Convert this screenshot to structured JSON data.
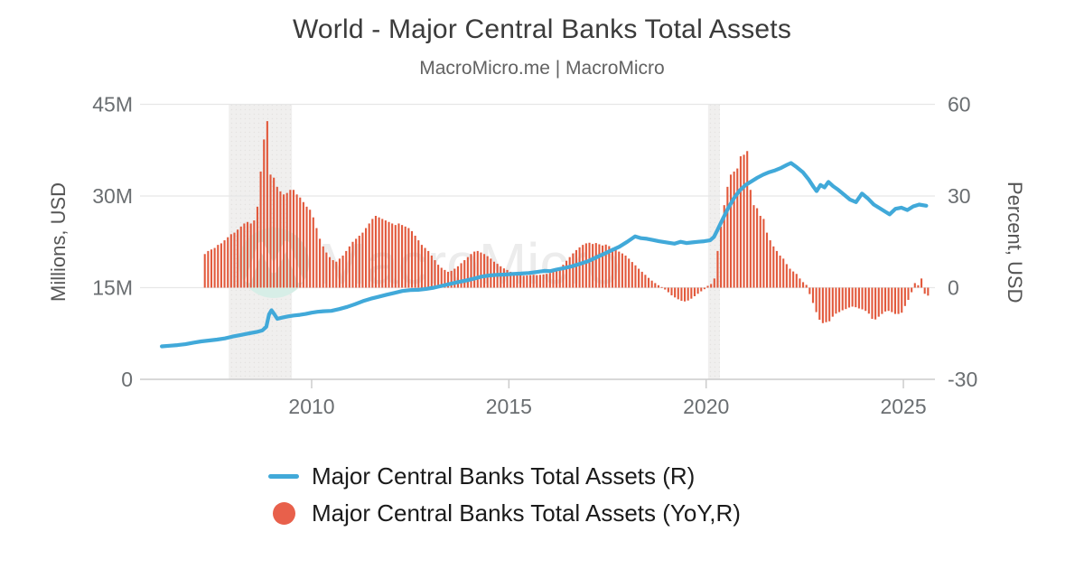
{
  "chart_data": {
    "type": "combo",
    "title": "World - Major Central Banks Total Assets",
    "subtitle": "MacroMicro.me | MacroMicro",
    "watermark": {
      "text": "MacroMicro"
    },
    "x_axis": {
      "ticks": [
        2010,
        2015,
        2020,
        2025
      ],
      "range_years": [
        2005.6,
        2025.85
      ],
      "grid": false
    },
    "left_axis": {
      "label": "Millions, USD",
      "tick_labels": [
        "45M",
        "30M",
        "15M",
        "0"
      ],
      "tick_values": [
        45,
        30,
        15,
        0
      ],
      "range": [
        0,
        45
      ]
    },
    "right_axis": {
      "label": "Percent, USD",
      "tick_labels": [
        "60",
        "30",
        "0",
        "-30"
      ],
      "tick_values": [
        60,
        30,
        0,
        -30
      ],
      "range": [
        -30,
        60
      ]
    },
    "recession_bands": [
      [
        2007.9,
        2009.5
      ],
      [
        2020.05,
        2020.35
      ]
    ],
    "legend_position": "bottom",
    "theme": {
      "grid": "#e7e7e7",
      "axis_line": "#cccccc",
      "tick_text": "#6a6e71",
      "band_fill": "#f0efee",
      "band_dot": "#e3e2e0",
      "watermark_text_color": "#ececec",
      "watermark_circle_color": "#d7eee7",
      "watermark_m_color": "#ffffff"
    },
    "series": [
      {
        "name": "Major Central Banks Total Assets (R)",
        "type": "line",
        "axis": "left",
        "unit": "M",
        "color": "#41a9d9",
        "points": [
          [
            2006.2,
            5.4
          ],
          [
            2006.4,
            5.5
          ],
          [
            2006.6,
            5.6
          ],
          [
            2006.8,
            5.75
          ],
          [
            2007.0,
            6.0
          ],
          [
            2007.2,
            6.2
          ],
          [
            2007.4,
            6.35
          ],
          [
            2007.6,
            6.5
          ],
          [
            2007.8,
            6.7
          ],
          [
            2008.0,
            7.0
          ],
          [
            2008.2,
            7.25
          ],
          [
            2008.4,
            7.5
          ],
          [
            2008.6,
            7.75
          ],
          [
            2008.75,
            8.0
          ],
          [
            2008.85,
            8.6
          ],
          [
            2008.92,
            10.6
          ],
          [
            2008.98,
            11.3
          ],
          [
            2009.05,
            10.7
          ],
          [
            2009.13,
            9.9
          ],
          [
            2009.25,
            10.1
          ],
          [
            2009.4,
            10.3
          ],
          [
            2009.55,
            10.45
          ],
          [
            2009.7,
            10.55
          ],
          [
            2009.85,
            10.7
          ],
          [
            2010.0,
            10.9
          ],
          [
            2010.15,
            11.05
          ],
          [
            2010.3,
            11.15
          ],
          [
            2010.5,
            11.2
          ],
          [
            2010.7,
            11.5
          ],
          [
            2010.9,
            11.85
          ],
          [
            2011.1,
            12.3
          ],
          [
            2011.3,
            12.8
          ],
          [
            2011.5,
            13.2
          ],
          [
            2011.7,
            13.5
          ],
          [
            2011.9,
            13.85
          ],
          [
            2012.1,
            14.15
          ],
          [
            2012.3,
            14.45
          ],
          [
            2012.5,
            14.6
          ],
          [
            2012.7,
            14.65
          ],
          [
            2012.9,
            14.8
          ],
          [
            2013.1,
            15.0
          ],
          [
            2013.3,
            15.3
          ],
          [
            2013.5,
            15.6
          ],
          [
            2013.7,
            15.9
          ],
          [
            2013.9,
            16.15
          ],
          [
            2014.1,
            16.45
          ],
          [
            2014.3,
            16.8
          ],
          [
            2014.5,
            17.0
          ],
          [
            2014.7,
            17.1
          ],
          [
            2014.9,
            17.15
          ],
          [
            2015.1,
            17.25
          ],
          [
            2015.3,
            17.3
          ],
          [
            2015.5,
            17.4
          ],
          [
            2015.7,
            17.55
          ],
          [
            2015.9,
            17.75
          ],
          [
            2016.05,
            17.7
          ],
          [
            2016.2,
            17.95
          ],
          [
            2016.4,
            18.2
          ],
          [
            2016.6,
            18.5
          ],
          [
            2016.8,
            18.9
          ],
          [
            2017.0,
            19.3
          ],
          [
            2017.2,
            19.9
          ],
          [
            2017.4,
            20.5
          ],
          [
            2017.6,
            21.1
          ],
          [
            2017.8,
            21.7
          ],
          [
            2018.0,
            22.5
          ],
          [
            2018.2,
            23.4
          ],
          [
            2018.35,
            23.1
          ],
          [
            2018.5,
            23.0
          ],
          [
            2018.65,
            22.8
          ],
          [
            2018.8,
            22.6
          ],
          [
            2019.0,
            22.4
          ],
          [
            2019.2,
            22.2
          ],
          [
            2019.35,
            22.5
          ],
          [
            2019.5,
            22.3
          ],
          [
            2019.65,
            22.4
          ],
          [
            2019.8,
            22.5
          ],
          [
            2019.95,
            22.6
          ],
          [
            2020.1,
            22.75
          ],
          [
            2020.2,
            23.3
          ],
          [
            2020.3,
            24.6
          ],
          [
            2020.42,
            26.2
          ],
          [
            2020.55,
            27.9
          ],
          [
            2020.7,
            29.6
          ],
          [
            2020.85,
            30.9
          ],
          [
            2021.0,
            31.8
          ],
          [
            2021.15,
            32.4
          ],
          [
            2021.3,
            33.0
          ],
          [
            2021.45,
            33.5
          ],
          [
            2021.6,
            33.9
          ],
          [
            2021.75,
            34.2
          ],
          [
            2021.9,
            34.6
          ],
          [
            2022.05,
            35.1
          ],
          [
            2022.15,
            35.4
          ],
          [
            2022.3,
            34.7
          ],
          [
            2022.45,
            33.9
          ],
          [
            2022.6,
            32.7
          ],
          [
            2022.72,
            31.5
          ],
          [
            2022.8,
            30.8
          ],
          [
            2022.9,
            31.8
          ],
          [
            2023.0,
            31.4
          ],
          [
            2023.1,
            32.3
          ],
          [
            2023.22,
            31.6
          ],
          [
            2023.35,
            31.0
          ],
          [
            2023.5,
            30.2
          ],
          [
            2023.65,
            29.4
          ],
          [
            2023.8,
            29.0
          ],
          [
            2023.95,
            30.4
          ],
          [
            2024.1,
            29.6
          ],
          [
            2024.25,
            28.6
          ],
          [
            2024.4,
            28.0
          ],
          [
            2024.55,
            27.4
          ],
          [
            2024.65,
            27.0
          ],
          [
            2024.8,
            27.9
          ],
          [
            2024.95,
            28.1
          ],
          [
            2025.1,
            27.7
          ],
          [
            2025.25,
            28.3
          ],
          [
            2025.4,
            28.6
          ],
          [
            2025.58,
            28.4
          ]
        ]
      },
      {
        "name": "Major Central Banks Total Assets (YoY,R)",
        "type": "bar",
        "axis": "right",
        "unit": "%",
        "color": "#e2593c",
        "legend_color": "#e8604b",
        "start_year": 2007,
        "start_month": 4,
        "monthly_values": [
          11,
          12,
          12.5,
          13,
          14,
          14.5,
          15.5,
          16.5,
          17.5,
          18,
          19,
          20,
          21,
          21.5,
          21,
          22,
          26.5,
          38,
          48.5,
          54.5,
          37,
          36,
          33,
          31.5,
          30.5,
          31,
          32,
          32,
          30.5,
          29.5,
          28,
          26.5,
          25.5,
          23,
          19.5,
          16,
          13.5,
          11.5,
          10,
          9,
          8.5,
          9.5,
          10.5,
          12,
          13.5,
          15,
          16,
          17,
          18,
          19.5,
          21,
          22.5,
          23.5,
          23,
          22.5,
          22,
          21.5,
          21,
          20.5,
          21,
          20.5,
          20,
          19.5,
          18.5,
          17,
          15.5,
          14,
          13,
          12,
          10.5,
          9,
          7.5,
          6.5,
          5.8,
          5.2,
          5.5,
          6.2,
          7,
          8,
          9,
          10,
          11,
          11.8,
          12,
          11.5,
          11,
          10.3,
          9.5,
          8.5,
          7.8,
          7,
          6.3,
          5.8,
          5.2,
          4.8,
          4.4,
          4.1,
          3.9,
          4,
          4.1,
          4.2,
          4.1,
          4.2,
          4.3,
          4.5,
          4.8,
          5.2,
          5.8,
          6.5,
          7.5,
          8.8,
          10,
          11.2,
          12.3,
          13.2,
          14,
          14.5,
          14.7,
          14.3,
          14.6,
          14.2,
          13.8,
          14.1,
          13.6,
          13,
          12.4,
          11.8,
          11.2,
          10.5,
          9.5,
          8.4,
          7.3,
          6.2,
          5.2,
          4.2,
          3.2,
          2.3,
          1.5,
          0.8,
          0.2,
          -0.6,
          -1.5,
          -2.5,
          -3.2,
          -3.8,
          -4.3,
          -4.5,
          -4.2,
          -3.6,
          -2.8,
          -2,
          -1.2,
          -0.5,
          0.6,
          1.2,
          3,
          12,
          20,
          27,
          33,
          37,
          38,
          39,
          43,
          43.5,
          44.7,
          32,
          27,
          26,
          23.5,
          22.5,
          18,
          15.5,
          13.5,
          12,
          10.5,
          9.5,
          7.7,
          6.2,
          5.3,
          4.5,
          3,
          1.8,
          0.9,
          -2.1,
          -5,
          -8,
          -10.5,
          -11.6,
          -11.3,
          -11,
          -9.5,
          -8.5,
          -8,
          -7.4,
          -7,
          -6.5,
          -6.2,
          -6.4,
          -6.8,
          -7.1,
          -7.6,
          -8.5,
          -10.2,
          -10.4,
          -9.5,
          -8.6,
          -7.8,
          -7.6,
          -8,
          -8.6,
          -8.6,
          -8.2,
          -6,
          -4,
          -1.5,
          1.5,
          0.8,
          3,
          -2,
          -2.6
        ]
      }
    ]
  }
}
